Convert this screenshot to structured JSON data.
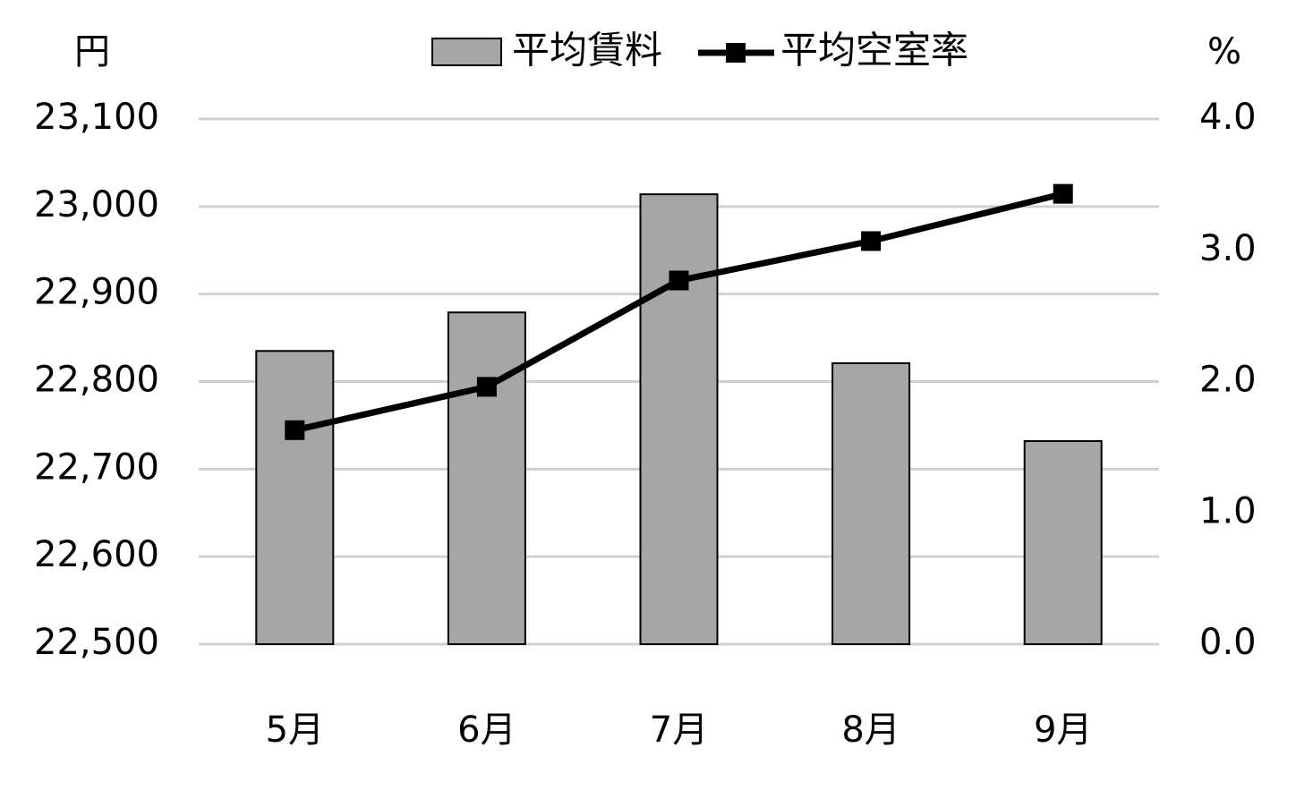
{
  "chart_data": {
    "type": "bar_line",
    "y_label": "円",
    "y2_label": "%",
    "categories": [
      "5月",
      "6月",
      "7月",
      "8月",
      "9月"
    ],
    "series": [
      {
        "name": "平均賃料",
        "type": "bar",
        "color": "#a6a6a6",
        "values": [
          22835,
          22879,
          23014,
          22821,
          22732
        ]
      },
      {
        "name": "平均空室率",
        "type": "line",
        "axis": "y2",
        "color": "#000000",
        "values": [
          1.63,
          1.96,
          2.77,
          3.07,
          3.43
        ]
      }
    ],
    "ylim": [
      22500,
      23100
    ],
    "yticks": [
      {
        "value": 22500,
        "label": "22,500"
      },
      {
        "value": 22600,
        "label": "22,600"
      },
      {
        "value": 22700,
        "label": "22,700"
      },
      {
        "value": 22800,
        "label": "22,800"
      },
      {
        "value": 22900,
        "label": "22,900"
      },
      {
        "value": 23000,
        "label": "23,000"
      },
      {
        "value": 23100,
        "label": "23,100"
      }
    ],
    "y2lim": [
      0,
      4
    ],
    "y2ticks": [
      {
        "value": 0,
        "label": "0.0"
      },
      {
        "value": 1,
        "label": "1.0"
      },
      {
        "value": 2,
        "label": "2.0"
      },
      {
        "value": 3,
        "label": "3.0"
      },
      {
        "value": 4,
        "label": "4.0"
      }
    ],
    "grid": true,
    "legend": "top"
  }
}
